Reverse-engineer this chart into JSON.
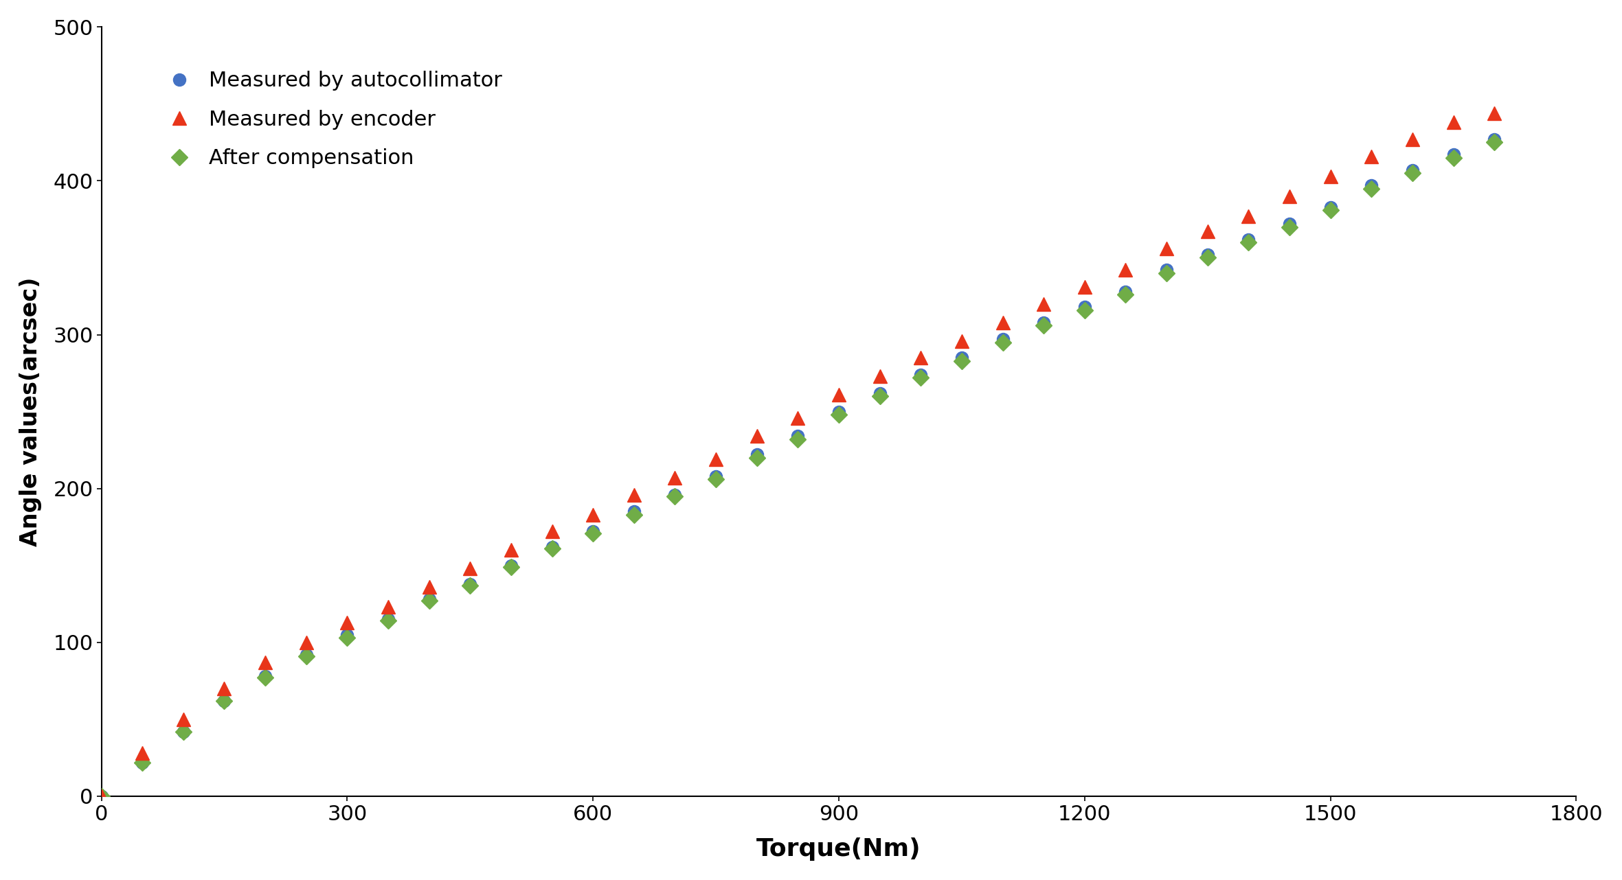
{
  "title": "",
  "xlabel": "Torque(Nm)",
  "ylabel": "Angle values(arcsec)",
  "xlim": [
    0,
    1800
  ],
  "ylim": [
    0,
    500
  ],
  "xticks": [
    0,
    300,
    600,
    900,
    1200,
    1500,
    1800
  ],
  "yticks": [
    0,
    100,
    200,
    300,
    400,
    500
  ],
  "legend_labels": [
    "Measured by autocollimator",
    "Measured by encoder",
    "After compensation"
  ],
  "series1_color": "#4472C4",
  "series2_color": "#E8351A",
  "series3_color": "#70AD47",
  "torque_x": [
    0,
    50,
    100,
    150,
    200,
    250,
    300,
    350,
    400,
    450,
    500,
    550,
    600,
    650,
    700,
    750,
    800,
    850,
    900,
    950,
    1000,
    1050,
    1100,
    1150,
    1200,
    1250,
    1300,
    1350,
    1400,
    1450,
    1500,
    1550,
    1600,
    1650,
    1700
  ],
  "autocollimator_y": [
    0,
    22,
    42,
    62,
    78,
    92,
    105,
    115,
    128,
    138,
    150,
    162,
    172,
    185,
    196,
    208,
    222,
    234,
    250,
    262,
    274,
    285,
    297,
    308,
    318,
    328,
    342,
    352,
    362,
    372,
    383,
    397,
    407,
    417,
    427
  ],
  "encoder_y": [
    0,
    28,
    50,
    70,
    87,
    100,
    113,
    123,
    136,
    148,
    160,
    172,
    183,
    196,
    207,
    219,
    234,
    246,
    261,
    273,
    285,
    296,
    308,
    320,
    331,
    342,
    356,
    367,
    377,
    390,
    403,
    416,
    427,
    438,
    444
  ],
  "compensation_y": [
    0,
    22,
    42,
    62,
    77,
    91,
    103,
    114,
    127,
    137,
    149,
    161,
    171,
    183,
    195,
    206,
    220,
    232,
    248,
    260,
    272,
    283,
    295,
    306,
    316,
    326,
    340,
    350,
    360,
    370,
    381,
    395,
    405,
    415,
    425
  ],
  "marker_size": 13,
  "xlabel_fontsize": 26,
  "ylabel_fontsize": 24,
  "tick_fontsize": 22,
  "legend_fontsize": 22,
  "background_color": "#ffffff"
}
